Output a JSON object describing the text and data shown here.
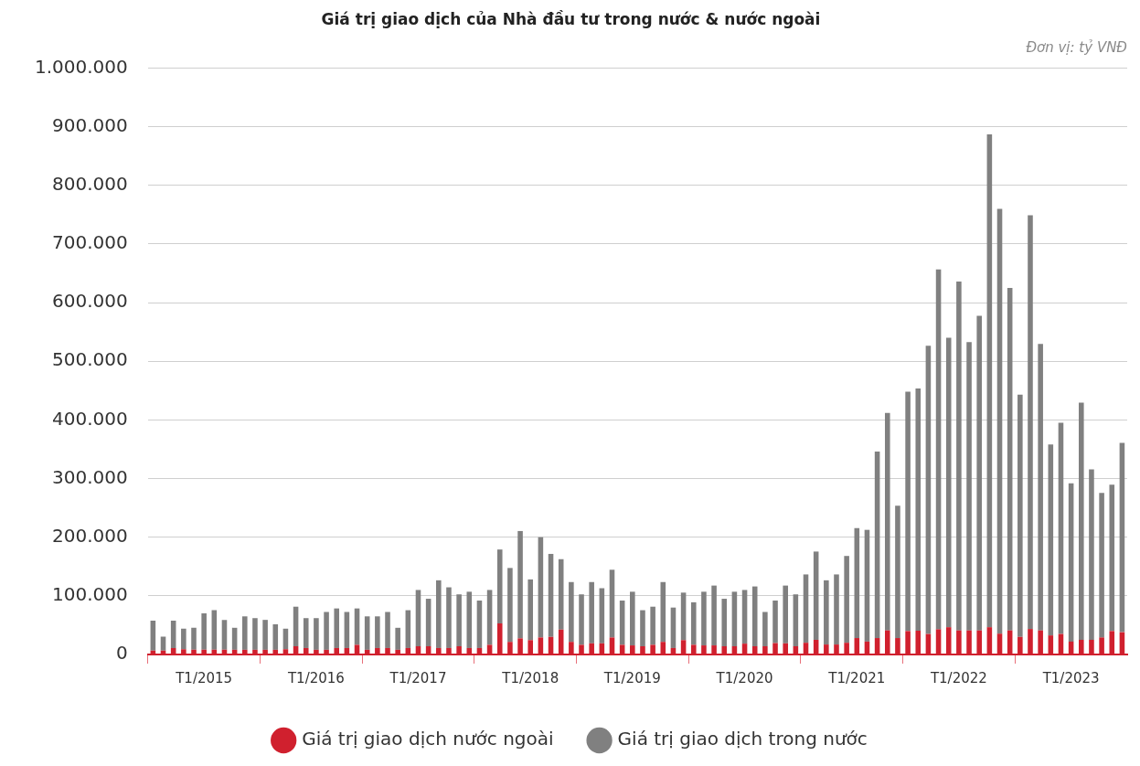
{
  "chart_data": {
    "type": "bar",
    "title": "Giá trị giao dịch của Nhà đầu tư trong nước & nước ngoài",
    "annotations": [
      "Đơn vị: tỷ VNĐ"
    ],
    "categories": [
      null,
      null,
      null,
      null,
      null,
      "T1/2015",
      null,
      null,
      null,
      null,
      null,
      null,
      null,
      null,
      null,
      null,
      "T1/2016",
      null,
      null,
      null,
      null,
      null,
      null,
      null,
      null,
      null,
      "T1/2017",
      null,
      null,
      null,
      null,
      null,
      null,
      null,
      null,
      null,
      null,
      "T1/2018",
      null,
      null,
      null,
      null,
      null,
      null,
      null,
      null,
      null,
      "T1/2019",
      null,
      null,
      null,
      null,
      null,
      null,
      null,
      null,
      null,
      null,
      "T1/2020",
      null,
      null,
      null,
      null,
      null,
      null,
      null,
      null,
      null,
      null,
      "T1/2021",
      null,
      null,
      null,
      null,
      null,
      null,
      null,
      null,
      null,
      "T1/2022",
      null,
      null,
      null,
      null,
      null,
      null,
      null,
      null,
      null,
      null,
      "T1/2023",
      null,
      null,
      null,
      null,
      null
    ],
    "stacked": true,
    "series": [
      {
        "name": "Giá trị giao dịch nước ngoài",
        "color": "#d0202e",
        "values": [
          6500,
          6500,
          11000,
          9000,
          8000,
          8000,
          8000,
          8000,
          8000,
          8000,
          8000,
          8000,
          8000,
          9000,
          14000,
          11000,
          8000,
          8000,
          11000,
          11000,
          16500,
          8000,
          11000,
          11000,
          8000,
          11000,
          14000,
          14000,
          11000,
          11000,
          14000,
          11000,
          11000,
          16500,
          53000,
          21500,
          27500,
          24500,
          29000,
          30000,
          42500,
          21500,
          16500,
          19000,
          19000,
          29000,
          16500,
          15500,
          14000,
          16500,
          21500,
          11000,
          24500,
          16500,
          15500,
          15500,
          14000,
          14000,
          18500,
          14000,
          14000,
          19500,
          19000,
          14000,
          20000,
          25000,
          17000,
          17000,
          20000,
          28000,
          22000,
          28000,
          41000,
          28000,
          40000,
          40500,
          35000,
          43000,
          46500,
          41000,
          41000,
          41000,
          46500,
          35500,
          41000,
          30000,
          43500,
          41000,
          32500,
          35000,
          22000,
          25000,
          25000,
          29000,
          40000,
          38000
        ]
      },
      {
        "name": "Giá trị giao dịch trong nước",
        "color": "#808080",
        "values": [
          51000,
          24000,
          46500,
          35000,
          37500,
          62000,
          67500,
          51000,
          37500,
          57000,
          54000,
          51000,
          43500,
          35000,
          67500,
          51000,
          54000,
          64500,
          67500,
          61500,
          62000,
          57000,
          54000,
          61500,
          37500,
          64500,
          96000,
          81000,
          115500,
          103500,
          88500,
          96000,
          81000,
          93500,
          126000,
          126000,
          183000,
          103500,
          171000,
          141500,
          120000,
          102000,
          86000,
          104500,
          94000,
          115500,
          75500,
          91500,
          61500,
          65000,
          102000,
          69000,
          81000,
          72500,
          91500,
          102000,
          81000,
          93000,
          91500,
          102000,
          58500,
          72500,
          98500,
          88500,
          116500,
          150500,
          109500,
          119500,
          148000,
          187500,
          190500,
          318000,
          371000,
          225500,
          408000,
          413000,
          491500,
          613500,
          493500,
          595000,
          491500,
          536500,
          840500,
          724500,
          584000,
          413000,
          705500,
          488500,
          325500,
          360000,
          270000,
          404500,
          290500,
          246500,
          249500,
          323000
        ]
      }
    ],
    "ylim": [
      0,
      1000000
    ],
    "yticks": [
      {
        "value": 0,
        "label": "0"
      },
      {
        "value": 100000,
        "label": "100.000"
      },
      {
        "value": 200000,
        "label": "200.000"
      },
      {
        "value": 300000,
        "label": "300.000"
      },
      {
        "value": 400000,
        "label": "400.000"
      },
      {
        "value": 500000,
        "label": "500.000"
      },
      {
        "value": 600000,
        "label": "600.000"
      },
      {
        "value": 700000,
        "label": "700.000"
      },
      {
        "value": 800000,
        "label": "800.000"
      },
      {
        "value": 900000,
        "label": "900.000"
      },
      {
        "value": 1000000,
        "label": "1.000.000"
      }
    ],
    "grid": "y",
    "legend": "bottom"
  }
}
